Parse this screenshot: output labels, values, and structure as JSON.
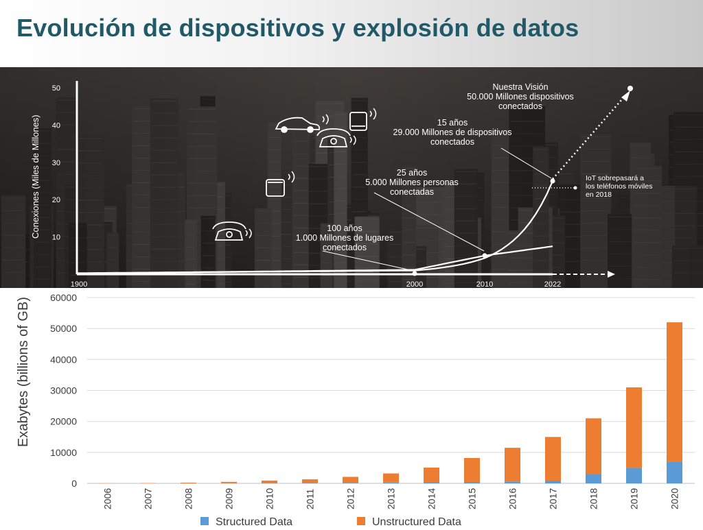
{
  "page_title": "Evolución de dispositivos y explosión de datos",
  "chart_data": [
    {
      "type": "line",
      "ylabel": "Conexiones (Miles de Millones)",
      "yticks": [
        "50",
        "40",
        "30",
        "20",
        "10"
      ],
      "xticks": [
        "1900",
        "2000",
        "2010",
        "2022"
      ],
      "ylim": [
        0,
        50
      ],
      "series": [
        {
          "x": [
            1900,
            2000,
            2010,
            2022
          ],
          "y": [
            0.3,
            1,
            5,
            25
          ]
        },
        {
          "x": [
            1900,
            2000,
            2010,
            2022
          ],
          "y": [
            0.2,
            1.2,
            5,
            7.5
          ]
        }
      ],
      "annotations": [
        {
          "lines": [
            "Nuestra Visión",
            "50.000 Millones dispositivos",
            "conectados"
          ]
        },
        {
          "lines": [
            "15 años",
            "29.000 Millones de dispositivos",
            "conectados"
          ]
        },
        {
          "lines": [
            "25 años",
            "5.000 Millones personas",
            "conectadas"
          ]
        },
        {
          "lines": [
            "100 años",
            "1.000 Millones de lugares",
            "conectados"
          ]
        },
        {
          "lines": [
            "IoT sobrepasará a",
            "los teléfonos móviles",
            "en  2018"
          ]
        }
      ],
      "icons": [
        "car-icon",
        "smartphone-icon",
        "tablet-icon",
        "desk-phone-icon",
        "telephone-icon"
      ]
    },
    {
      "type": "bar",
      "stacked": true,
      "ylabel": "Exabytes (billions of GB)",
      "ylim": [
        0,
        60000
      ],
      "yticks": [
        "60000",
        "50000",
        "40000",
        "30000",
        "20000",
        "10000",
        "0"
      ],
      "categories": [
        "2006",
        "2007",
        "2008",
        "2009",
        "2010",
        "2011",
        "2012",
        "2013",
        "2014",
        "2015",
        "2016",
        "2017",
        "2018",
        "2019",
        "2020"
      ],
      "series": [
        {
          "name": "Structured Data",
          "color": "#5b9bd5",
          "values": [
            0,
            0,
            20,
            40,
            80,
            120,
            180,
            250,
            350,
            450,
            600,
            900,
            3000,
            5000,
            7000
          ]
        },
        {
          "name": "Unstructured Data",
          "color": "#ed7d31",
          "values": [
            50,
            80,
            200,
            450,
            820,
            1180,
            1920,
            2950,
            4750,
            7750,
            10900,
            14100,
            18000,
            26000,
            45000
          ]
        }
      ],
      "legend": "bottom",
      "grid": true
    }
  ]
}
